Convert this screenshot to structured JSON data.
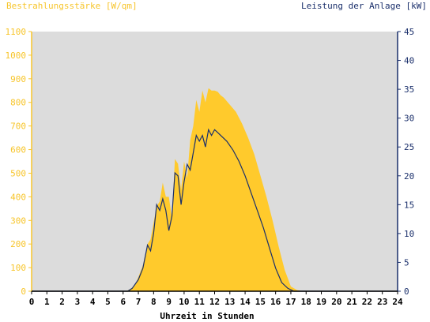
{
  "chart_data": {
    "type": "area",
    "left_axis_title": "Bestrahlungsstärke [W/qm]",
    "right_axis_title": "Leistung der Anlage [kW]",
    "xlabel": "Uhrzeit in Stunden",
    "xlim": [
      0,
      24
    ],
    "x_ticks": [
      "0",
      "1",
      "2",
      "3",
      "4",
      "5",
      "6",
      "7",
      "8",
      "9",
      "10",
      "11",
      "12",
      "13",
      "14",
      "15",
      "16",
      "17",
      "18",
      "19",
      "20",
      "21",
      "22",
      "23",
      "24"
    ],
    "ylim_left": [
      0,
      1100
    ],
    "ylim_right": [
      0,
      45
    ],
    "y_ticks_left": [
      "0",
      "100",
      "200",
      "300",
      "400",
      "500",
      "600",
      "700",
      "800",
      "900",
      "1000",
      "1100"
    ],
    "y_ticks_right": [
      "0",
      "5",
      "10",
      "15",
      "20",
      "25",
      "30",
      "35",
      "40",
      "45"
    ],
    "grid": false,
    "colors": {
      "plot_bg": "#dcdcdc",
      "irradiance_fill": "#ffca2c",
      "power_line": "#1a2f6b",
      "left_axis": "#f7c52b",
      "right_axis": "#1a2f6b"
    },
    "series": [
      {
        "axis": "left",
        "style": "area",
        "x": [
          0,
          6.2,
          6.5,
          6.8,
          7.0,
          7.3,
          7.6,
          7.8,
          8.0,
          8.2,
          8.4,
          8.6,
          8.8,
          9.0,
          9.2,
          9.4,
          9.6,
          9.8,
          10.0,
          10.2,
          10.4,
          10.6,
          10.8,
          11.0,
          11.2,
          11.4,
          11.6,
          11.8,
          12.0,
          12.2,
          12.4,
          12.6,
          13.0,
          13.4,
          13.8,
          14.2,
          14.6,
          15.0,
          15.4,
          15.8,
          16.2,
          16.6,
          17.0,
          17.4,
          17.8,
          18.0,
          18.3,
          18.6,
          19.0,
          24
        ],
        "y": [
          0,
          0,
          10,
          30,
          60,
          110,
          200,
          220,
          290,
          360,
          380,
          460,
          400,
          400,
          310,
          560,
          540,
          430,
          550,
          480,
          640,
          700,
          810,
          760,
          850,
          800,
          860,
          850,
          850,
          845,
          830,
          820,
          790,
          760,
          710,
          650,
          580,
          490,
          400,
          300,
          190,
          90,
          20,
          5,
          0,
          0,
          0,
          0,
          0,
          0
        ]
      },
      {
        "axis": "right",
        "style": "line",
        "x": [
          0,
          6.3,
          6.6,
          7.0,
          7.3,
          7.6,
          7.8,
          8.0,
          8.2,
          8.4,
          8.6,
          8.8,
          9.0,
          9.2,
          9.4,
          9.6,
          9.8,
          10.0,
          10.2,
          10.4,
          10.6,
          10.8,
          11.0,
          11.2,
          11.4,
          11.6,
          11.8,
          12.0,
          12.2,
          12.4,
          12.8,
          13.2,
          13.6,
          14.0,
          14.4,
          14.8,
          15.2,
          15.6,
          16.0,
          16.4,
          16.8,
          17.2,
          17.6,
          17.8,
          18.0,
          18.3,
          24
        ],
        "y": [
          0,
          0,
          0.5,
          2,
          4,
          8,
          7,
          10,
          15,
          14,
          16,
          14,
          10.5,
          13,
          20.5,
          20,
          15,
          19,
          22,
          21,
          24,
          27,
          26,
          27,
          25,
          28,
          27,
          28,
          27.5,
          27,
          26,
          24.5,
          22.5,
          20,
          17,
          14,
          11,
          7.5,
          4,
          1.5,
          0.5,
          0,
          0,
          0,
          0,
          0,
          0
        ]
      }
    ]
  }
}
